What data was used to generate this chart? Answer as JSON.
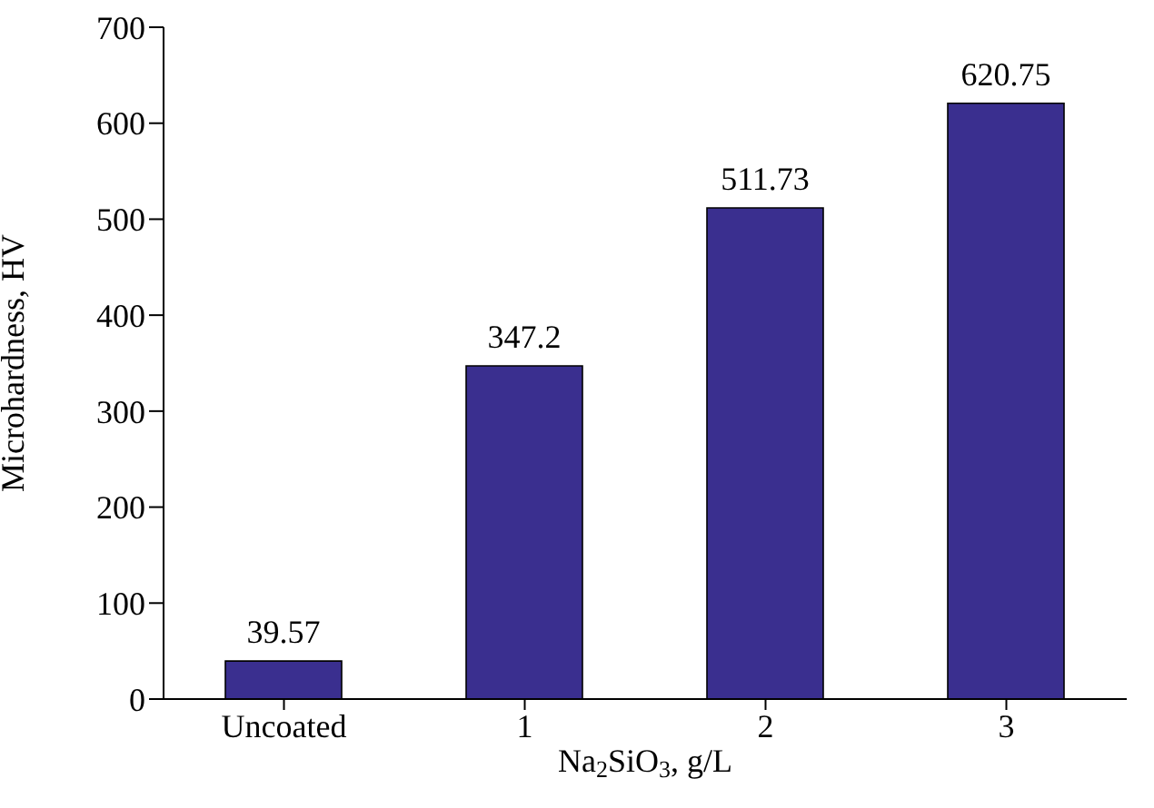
{
  "chart_data": {
    "type": "bar",
    "xlabel": "Na$_{2}$SiO$_{3}$, g/L",
    "ylabel": "Microhardness, HV",
    "categories": [
      "Uncoated",
      "1",
      "2",
      "3"
    ],
    "values": [
      39.57,
      347.2,
      511.73,
      620.75
    ],
    "color": "#3a2f8f",
    "ylim": [
      0,
      700
    ],
    "yticks": [
      0,
      100,
      200,
      300,
      400,
      500,
      600,
      700
    ],
    "grid": false,
    "data_labels": true
  }
}
